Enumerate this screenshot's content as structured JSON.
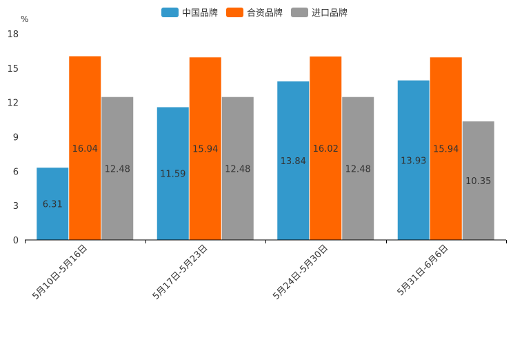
{
  "chart_data": {
    "type": "bar",
    "unit_label": "%",
    "categories": [
      "5月10日-5月16日",
      "5月17日-5月23日",
      "5月24日-5月30日",
      "5月31日-6月6日"
    ],
    "series": [
      {
        "name": "中国品牌",
        "color": "#3399cc",
        "values": [
          6.31,
          11.59,
          13.84,
          13.93
        ]
      },
      {
        "name": "合资品牌",
        "color": "#ff6600",
        "values": [
          16.04,
          15.94,
          16.02,
          15.94
        ]
      },
      {
        "name": "进口品牌",
        "color": "#999999",
        "values": [
          12.48,
          12.48,
          12.48,
          10.35
        ]
      }
    ],
    "ylim": [
      0,
      18
    ],
    "yticks": [
      0,
      3,
      6,
      9,
      12,
      15,
      18
    ],
    "grid": false,
    "legend_position": "top-center"
  }
}
